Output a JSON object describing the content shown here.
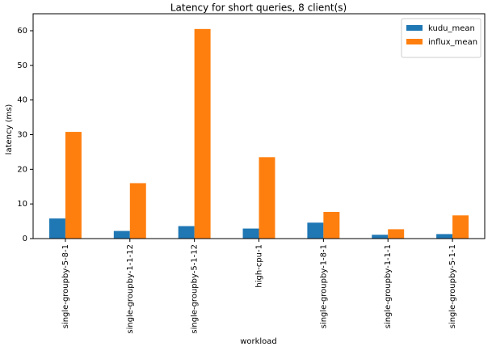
{
  "chart_data": {
    "type": "bar",
    "title": "Latency for short queries, 8 client(s)",
    "x_label": "workload",
    "y_label": "latency (ms)",
    "categories": [
      "single-groupby-5-8-1",
      "single-groupby-1-1-12",
      "single-groupby-5-1-12",
      "high-cpu-1",
      "single-groupby-1-8-1",
      "single-groupby-1-1-1",
      "single-groupby-5-1-1"
    ],
    "series": [
      {
        "name": "kudu_mean",
        "color": "#1f77b4",
        "values": [
          5.8,
          2.2,
          3.6,
          2.9,
          4.6,
          1.1,
          1.3
        ]
      },
      {
        "name": "influx_mean",
        "color": "#ff7f0e",
        "values": [
          30.8,
          16.0,
          60.5,
          23.5,
          7.7,
          2.7,
          6.7
        ]
      }
    ],
    "ylim": [
      0,
      64.9
    ],
    "yticks": [
      0,
      10,
      20,
      30,
      40,
      50,
      60
    ],
    "grid": false,
    "legend": "upper right"
  }
}
